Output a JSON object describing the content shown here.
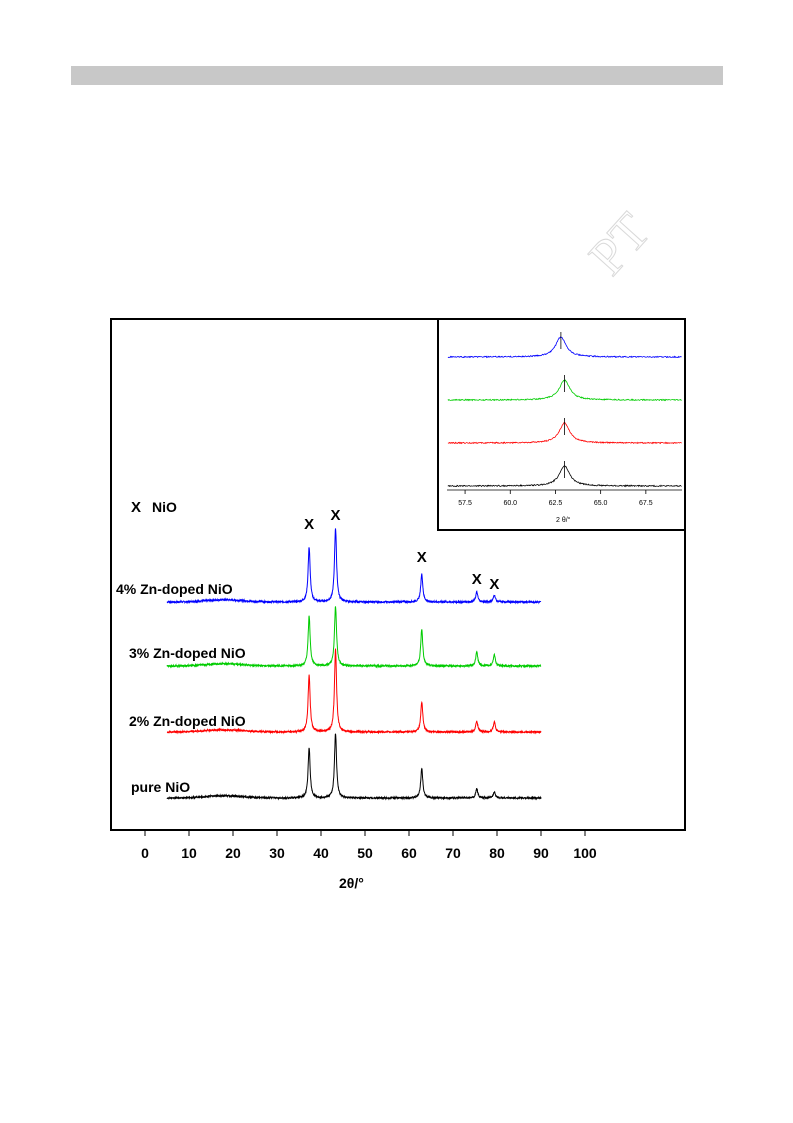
{
  "watermark": {
    "text": "PT"
  },
  "chart_data": [
    {
      "type": "line",
      "title": "",
      "xlabel": "2θ/°",
      "ylabel": "",
      "xlim": [
        -5,
        120
      ],
      "xticks": [
        0,
        10,
        20,
        30,
        40,
        50,
        60,
        70,
        80,
        90,
        100
      ],
      "marker_legend": {
        "symbol": "X",
        "label": "NiO"
      },
      "peak_markers": [
        37.3,
        43.3,
        62.9,
        75.4,
        79.4
      ],
      "series": [
        {
          "name": "4% Zn-doped NiO",
          "color": "#0000ff",
          "x": [
            5,
            37.3,
            43.3,
            62.9,
            75.4,
            79.4,
            90
          ],
          "y": [
            0,
            55,
            74,
            28,
            10,
            7,
            0
          ]
        },
        {
          "name": "3% Zn-doped NiO",
          "color": "#00cc00",
          "x": [
            5,
            37.3,
            43.3,
            62.9,
            75.4,
            79.4,
            90
          ],
          "y": [
            0,
            50,
            60,
            37,
            14,
            11,
            0
          ]
        },
        {
          "name": "2% Zn-doped NiO",
          "color": "#ff0000",
          "x": [
            5,
            37.3,
            43.3,
            62.9,
            75.4,
            79.4,
            90
          ],
          "y": [
            0,
            57,
            83,
            30,
            11,
            10,
            0
          ]
        },
        {
          "name": "pure NiO",
          "color": "#000000",
          "x": [
            5,
            37.3,
            43.3,
            62.9,
            75.4,
            79.4,
            90
          ],
          "y": [
            0,
            50,
            65,
            30,
            9,
            6,
            0
          ]
        }
      ]
    },
    {
      "type": "line",
      "title": "",
      "xlabel": "2 θ/°",
      "ylabel": "",
      "xlim": [
        56.5,
        69.5
      ],
      "xticks": [
        "57.5",
        "60.0",
        "62.5",
        "65.0",
        "67.5"
      ],
      "series": [
        {
          "color": "#0000ff",
          "peak": 62.8
        },
        {
          "color": "#00cc00",
          "peak": 63.0
        },
        {
          "color": "#ff0000",
          "peak": 63.0
        },
        {
          "color": "#000000",
          "peak": 63.0
        }
      ]
    }
  ]
}
